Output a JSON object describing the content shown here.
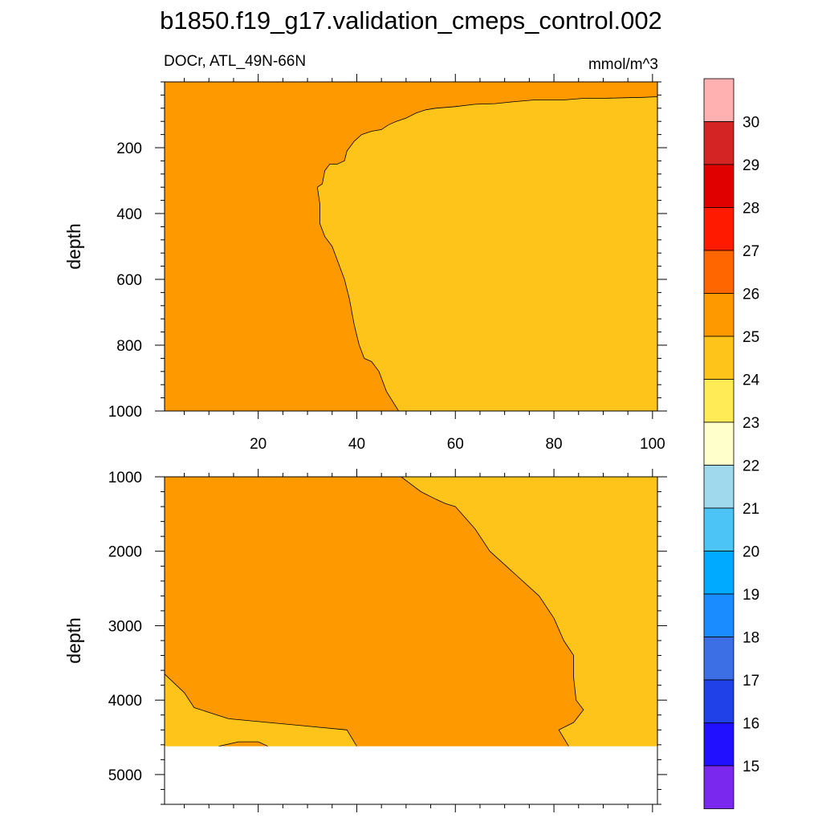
{
  "title": "b1850.f19_g17.validation_cmeps_control.002",
  "left_string": "DOCr, ATL_49N-66N",
  "right_string": "mmol/m^3",
  "ylabel": "depth",
  "colors": {
    "fill_low": "#FF9900",
    "fill_high": "#FFC41A",
    "missing": "#FFFFFF",
    "line": "#000000"
  },
  "chart_data": [
    {
      "type": "heatmap",
      "panel": "top",
      "x_range": [
        1,
        101
      ],
      "y_range": [
        0,
        1000
      ],
      "y_reversed": true,
      "x_ticks": [
        20,
        40,
        60,
        80,
        100
      ],
      "y_ticks": [
        200,
        400,
        600,
        800,
        1000
      ],
      "ylabel": "depth",
      "contour_24_to_25_boundary": [
        [
          48.5,
          1000
        ],
        [
          46,
          940
        ],
        [
          44.5,
          880
        ],
        [
          43,
          850
        ],
        [
          41.5,
          840
        ],
        [
          40.5,
          800
        ],
        [
          39.5,
          740
        ],
        [
          38.5,
          660
        ],
        [
          37.5,
          600
        ],
        [
          36.5,
          560
        ],
        [
          35,
          500
        ],
        [
          33.5,
          470
        ],
        [
          32.5,
          430
        ],
        [
          32.5,
          370
        ],
        [
          32,
          320
        ],
        [
          33,
          310
        ],
        [
          33.5,
          270
        ],
        [
          34.5,
          250
        ],
        [
          36,
          250
        ],
        [
          37.5,
          240
        ],
        [
          38,
          210
        ],
        [
          39.5,
          180
        ],
        [
          41,
          160
        ],
        [
          43,
          150
        ],
        [
          45,
          145
        ],
        [
          46.5,
          130
        ],
        [
          48,
          120
        ],
        [
          50,
          110
        ],
        [
          52,
          95
        ],
        [
          54,
          85
        ],
        [
          56,
          80
        ],
        [
          60,
          75
        ],
        [
          64,
          68
        ],
        [
          68,
          66
        ],
        [
          72,
          60
        ],
        [
          76,
          55
        ],
        [
          82,
          55
        ],
        [
          86,
          50
        ],
        [
          90,
          50
        ],
        [
          95,
          48
        ],
        [
          98,
          47
        ],
        [
          101,
          45
        ]
      ],
      "regions": [
        {
          "range": "25-26",
          "where": "left side and surface layer"
        },
        {
          "range": "24-25",
          "where": "right side below ~50 m"
        }
      ]
    },
    {
      "type": "heatmap",
      "panel": "bottom",
      "x_range": [
        1,
        101
      ],
      "y_range": [
        1000,
        5400
      ],
      "y_reversed": true,
      "x_ticks": [
        20,
        40,
        60,
        80,
        100
      ],
      "y_ticks": [
        1000,
        2000,
        3000,
        4000,
        5000
      ],
      "ylabel": "depth",
      "missing_below_depth": 4620,
      "contour_24_to_25_boundary_right": [
        [
          49,
          1000
        ],
        [
          53,
          1200
        ],
        [
          56,
          1300
        ],
        [
          58,
          1360
        ],
        [
          60,
          1400
        ],
        [
          64,
          1700
        ],
        [
          67,
          2000
        ],
        [
          72,
          2300
        ],
        [
          77,
          2600
        ],
        [
          80,
          2900
        ],
        [
          82,
          3200
        ],
        [
          84,
          3400
        ],
        [
          84,
          3700
        ],
        [
          84.5,
          4000
        ],
        [
          86,
          4130
        ],
        [
          84,
          4300
        ],
        [
          81,
          4400
        ],
        [
          83,
          4620
        ]
      ],
      "contour_24_to_25_boundary_bottom_left": [
        [
          1,
          3650
        ],
        [
          5,
          3900
        ],
        [
          7,
          4100
        ],
        [
          14,
          4250
        ],
        [
          22,
          4300
        ],
        [
          30,
          4350
        ],
        [
          38,
          4400
        ],
        [
          40,
          4620
        ]
      ],
      "small_contour_24_to_25": [
        [
          12,
          4620
        ],
        [
          16,
          4560
        ],
        [
          20,
          4560
        ],
        [
          22,
          4620
        ]
      ],
      "regions": [
        {
          "range": "25-26",
          "where": "central and left body"
        },
        {
          "range": "24-25",
          "where": "upper right and bottom left"
        }
      ]
    }
  ],
  "colorbar": {
    "colors": [
      "#FFB0B0",
      "#D42424",
      "#E00000",
      "#FF1A00",
      "#FF6600",
      "#FF9900",
      "#FFC41A",
      "#FFEB55",
      "#FFFFCC",
      "#A0D8EE",
      "#4CC4F5",
      "#00AAFF",
      "#1A8CFF",
      "#3C6EE6",
      "#2040E8",
      "#2010FF",
      "#7A28EE"
    ],
    "labels": [
      "30",
      "29",
      "28",
      "27",
      "26",
      "25",
      "24",
      "23",
      "22",
      "21",
      "20",
      "19",
      "18",
      "17",
      "16",
      "15"
    ]
  }
}
